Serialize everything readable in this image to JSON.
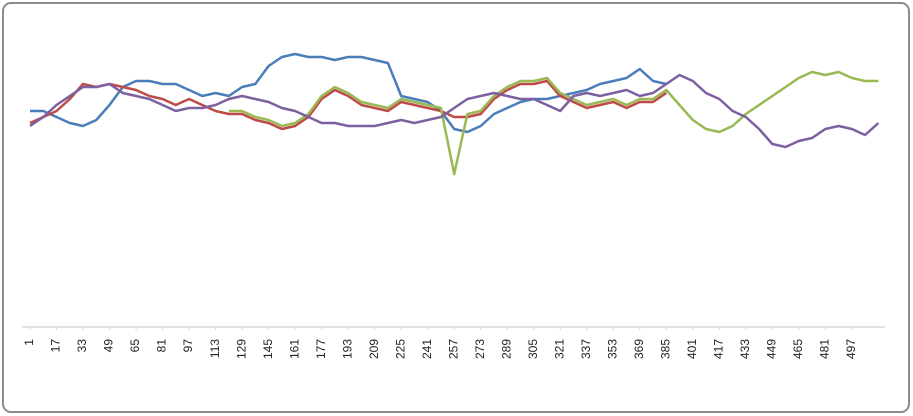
{
  "chart_data": {
    "type": "line",
    "x": [
      1,
      9,
      17,
      25,
      33,
      41,
      49,
      57,
      65,
      73,
      81,
      89,
      97,
      105,
      113,
      121,
      129,
      137,
      145,
      153,
      161,
      169,
      177,
      185,
      193,
      201,
      209,
      217,
      225,
      233,
      241,
      249,
      257,
      265,
      273,
      281,
      289,
      297,
      305,
      313,
      321,
      329,
      337,
      345,
      353,
      361,
      369,
      377,
      385,
      393,
      401,
      409,
      417,
      425,
      433,
      441,
      449,
      457,
      465,
      473,
      481,
      489,
      497,
      505,
      513
    ],
    "xlim": [
      1,
      517
    ],
    "xticks": [
      1,
      17,
      33,
      49,
      65,
      81,
      97,
      113,
      129,
      145,
      161,
      177,
      193,
      209,
      225,
      241,
      257,
      273,
      289,
      305,
      321,
      337,
      353,
      369,
      385,
      401,
      417,
      433,
      449,
      465,
      481,
      497
    ],
    "ylim": [
      0,
      100
    ],
    "series": [
      {
        "color": "#4a7ebb",
        "values": [
          72,
          72,
          70,
          68,
          67,
          69,
          74,
          80,
          82,
          82,
          81,
          81,
          79,
          77,
          78,
          77,
          80,
          81,
          87,
          90,
          91,
          90,
          90,
          89,
          90,
          90,
          89,
          88,
          77,
          76,
          75,
          72,
          66,
          65,
          67,
          71,
          73,
          75,
          76,
          76,
          77,
          78,
          79,
          81,
          82,
          83,
          86,
          82,
          81,
          null,
          null,
          null,
          null,
          null,
          null,
          null,
          null,
          null,
          null,
          null,
          null,
          null,
          null,
          null,
          null
        ]
      },
      {
        "color": "#be4b48",
        "values": [
          68,
          70,
          72,
          76,
          81,
          80,
          81,
          80,
          79,
          77,
          76,
          74,
          76,
          74,
          72,
          71,
          71,
          69,
          68,
          66,
          67,
          70,
          76,
          79,
          77,
          74,
          73,
          72,
          75,
          74,
          73,
          72,
          70,
          70,
          71,
          76,
          79,
          81,
          81,
          82,
          77,
          75,
          73,
          74,
          75,
          73,
          75,
          75,
          78,
          null,
          null,
          null,
          null,
          null,
          null,
          null,
          null,
          null,
          null,
          null,
          null,
          null,
          null,
          null,
          null
        ]
      },
      {
        "color": "#98b954",
        "values": [
          null,
          null,
          null,
          null,
          null,
          null,
          null,
          null,
          null,
          null,
          null,
          null,
          null,
          null,
          null,
          72,
          72,
          70,
          69,
          67,
          68,
          71,
          77,
          80,
          78,
          75,
          74,
          73,
          76,
          75,
          74,
          73,
          51,
          71,
          72,
          77,
          80,
          82,
          82,
          83,
          78,
          76,
          74,
          75,
          76,
          74,
          76,
          76,
          79,
          74,
          69,
          66,
          65,
          67,
          71,
          74,
          77,
          80,
          83,
          85,
          84,
          85,
          83,
          82,
          82
        ]
      },
      {
        "color": "#7d60a0",
        "values": [
          67,
          70,
          74,
          77,
          80,
          80,
          81,
          78,
          77,
          76,
          74,
          72,
          73,
          73,
          74,
          76,
          77,
          76,
          75,
          73,
          72,
          70,
          68,
          68,
          67,
          67,
          67,
          68,
          69,
          68,
          69,
          70,
          73,
          76,
          77,
          78,
          77,
          76,
          76,
          74,
          72,
          77,
          78,
          77,
          78,
          79,
          77,
          78,
          81,
          84,
          82,
          78,
          76,
          72,
          70,
          66,
          61,
          60,
          62,
          63,
          66,
          67,
          66,
          64,
          68
        ]
      }
    ]
  }
}
